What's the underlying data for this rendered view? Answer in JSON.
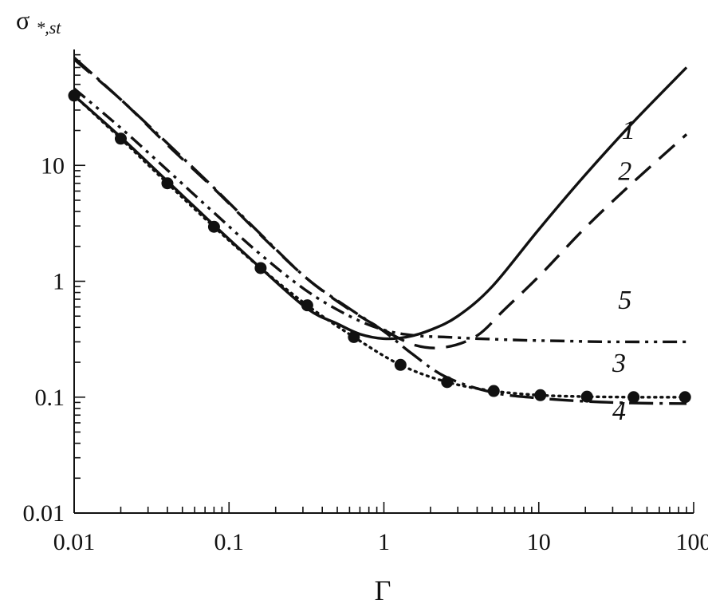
{
  "chart_data": {
    "type": "line",
    "xscale": "log",
    "yscale": "log",
    "xlim": [
      0.01,
      100
    ],
    "ylim": [
      0.01,
      100
    ],
    "xlabel": "Γ",
    "ylabel": {
      "main": "σ",
      "sub": "*,st"
    },
    "x_ticks": [
      {
        "value": 0.01,
        "label": "0.01"
      },
      {
        "value": 0.1,
        "label": "0.1"
      },
      {
        "value": 1,
        "label": "1"
      },
      {
        "value": 10,
        "label": "10"
      },
      {
        "value": 100,
        "label": "100"
      }
    ],
    "y_ticks": [
      {
        "value": 0.01,
        "label": "0.01"
      },
      {
        "value": 0.1,
        "label": "0.1"
      },
      {
        "value": 1,
        "label": "1"
      },
      {
        "value": 10,
        "label": "10"
      }
    ],
    "series": [
      {
        "name": "1",
        "style": "solid",
        "x": [
          0.01,
          0.02,
          0.04,
          0.08,
          0.16,
          0.32,
          0.5,
          0.7,
          1.0,
          1.4,
          2.0,
          3.0,
          5.0,
          10,
          20,
          40,
          90
        ],
        "y": [
          40,
          17.5,
          7.3,
          3.05,
          1.3,
          0.58,
          0.43,
          0.35,
          0.32,
          0.33,
          0.38,
          0.5,
          0.9,
          2.8,
          8.3,
          23,
          70
        ]
      },
      {
        "name": "2",
        "style": "dashed",
        "x": [
          0.01,
          0.02,
          0.04,
          0.08,
          0.16,
          0.32,
          0.6,
          1.0,
          1.6,
          2.5,
          4.0,
          6.0,
          10,
          20,
          40,
          90
        ],
        "y": [
          82,
          37,
          15,
          6.3,
          2.5,
          1.05,
          0.57,
          0.38,
          0.28,
          0.27,
          0.34,
          0.57,
          1.1,
          2.9,
          7.0,
          18.5
        ]
      },
      {
        "name": "3",
        "style": "dotted",
        "x": [
          0.01,
          0.02,
          0.04,
          0.08,
          0.16,
          0.32,
          0.64,
          1.28,
          2.56,
          5.12,
          10.24,
          20.48,
          40.96,
          88
        ],
        "y": [
          40,
          17,
          7,
          2.95,
          1.3,
          0.62,
          0.33,
          0.19,
          0.135,
          0.113,
          0.104,
          0.101,
          0.1,
          0.1
        ]
      },
      {
        "name": "4",
        "style": "dash-dot",
        "x": [
          0.01,
          0.02,
          0.04,
          0.08,
          0.16,
          0.32,
          0.6,
          1.0,
          1.5,
          2.5,
          5.0,
          10,
          20,
          40,
          90
        ],
        "y": [
          85,
          37,
          15.5,
          6.4,
          2.55,
          1.05,
          0.58,
          0.37,
          0.24,
          0.15,
          0.11,
          0.098,
          0.092,
          0.089,
          0.088
        ]
      },
      {
        "name": "5",
        "style": "dash-dot-dot",
        "x": [
          0.01,
          0.02,
          0.04,
          0.08,
          0.16,
          0.32,
          0.6,
          1.0,
          1.6,
          2.5,
          4.0,
          8.0,
          15,
          30,
          90
        ],
        "y": [
          46,
          21,
          9.1,
          3.9,
          1.7,
          0.82,
          0.5,
          0.38,
          0.34,
          0.33,
          0.32,
          0.31,
          0.305,
          0.3,
          0.3
        ]
      }
    ],
    "markers": {
      "series": "3",
      "x": [
        0.01,
        0.02,
        0.04,
        0.08,
        0.16,
        0.32,
        0.64,
        1.28,
        2.56,
        5.12,
        10.24,
        20.48,
        40.96,
        88
      ],
      "y": [
        40,
        17,
        7,
        2.95,
        1.3,
        0.62,
        0.33,
        0.19,
        0.135,
        0.113,
        0.104,
        0.101,
        0.1,
        0.1
      ]
    },
    "annotations": [
      {
        "text": "1",
        "x": 38,
        "y": 17
      },
      {
        "text": "2",
        "x": 36,
        "y": 7.5
      },
      {
        "text": "5",
        "x": 36,
        "y": 0.58
      },
      {
        "text": "3",
        "x": 33,
        "y": 0.165
      },
      {
        "text": "4",
        "x": 33,
        "y": 0.064
      }
    ]
  }
}
